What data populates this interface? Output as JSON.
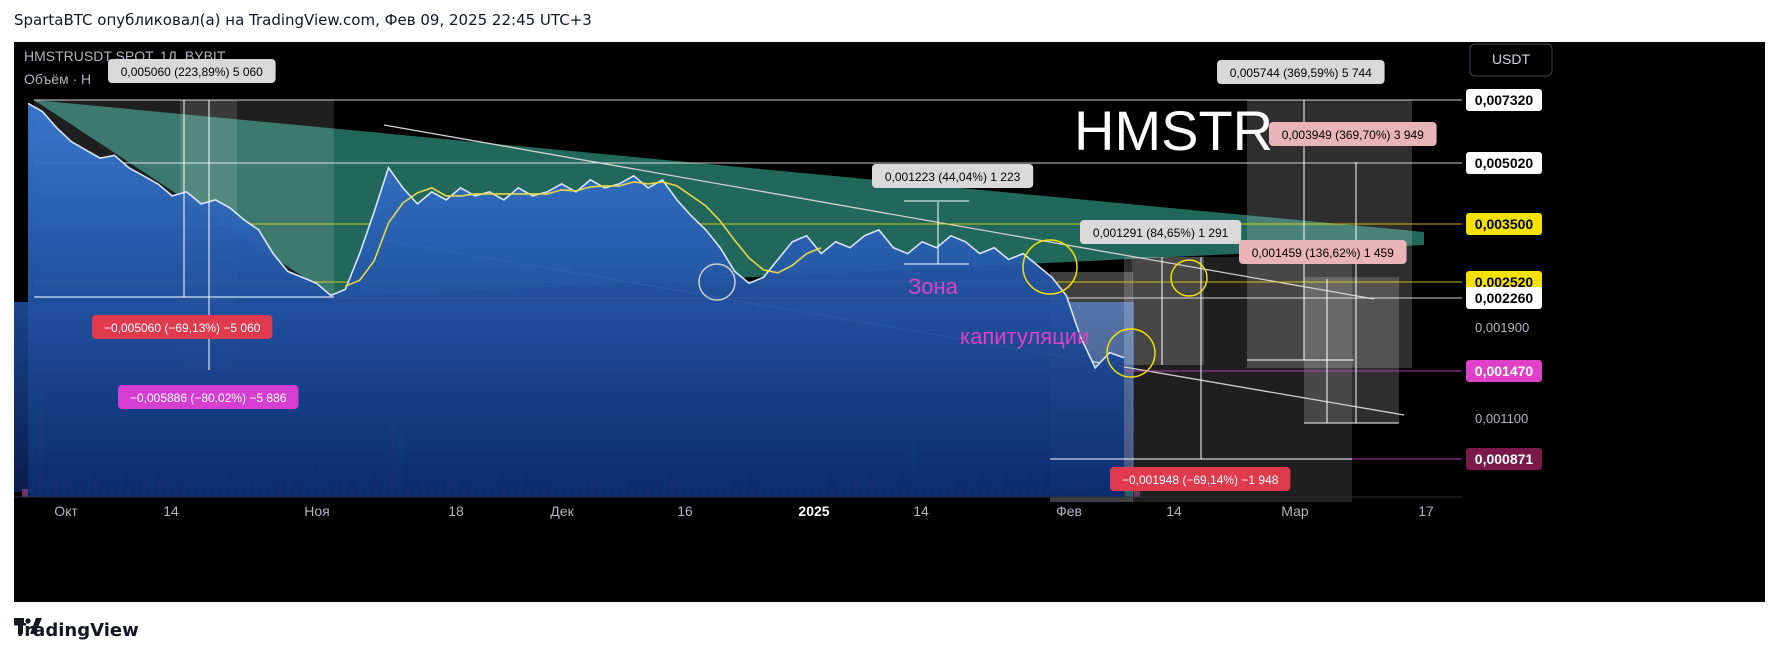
{
  "header": {
    "text": "SpartaBTC опубликовал(а) на TradingView.com, Фев 09, 2025 22:45 UTC+3"
  },
  "footer": {
    "brand": "TradingView"
  },
  "chart_data": {
    "type": "area",
    "symbol_line": "HMSTRUSDT SPOT, 1Д, BYBIT",
    "volume_line": "Объём · Н",
    "currency_button": "USDT",
    "watermark": "HMSTR",
    "x_ticks": [
      "Окт",
      "14",
      "Ноя",
      "18",
      "Дек",
      "16",
      "2025",
      "14",
      "Фев",
      "14",
      "Мар",
      "17"
    ],
    "price_scale_ticks": [
      "0,001900",
      "0,001100"
    ],
    "price_levels": [
      {
        "label": "0,007320",
        "value": 0.00732,
        "color": "#ffffff"
      },
      {
        "label": "0,005020",
        "value": 0.00502,
        "color": "#ffffff"
      },
      {
        "label": "0,003500",
        "value": 0.0035,
        "color": "#f5e100"
      },
      {
        "label": "0,002520",
        "value": 0.00252,
        "color": "#f5e100"
      },
      {
        "label": "0,002260",
        "value": 0.00226,
        "color": "#ffffff"
      },
      {
        "label": "0,001470",
        "value": 0.00147,
        "color": "#e040c8"
      },
      {
        "label": "0,000871",
        "value": 0.000871,
        "color": "#7a1a4a"
      }
    ],
    "measurements": [
      {
        "text": "0,005060 (223,89%) 5 060",
        "kind": "up"
      },
      {
        "text": "−0,005060 (−69,13%) −5 060",
        "kind": "down"
      },
      {
        "text": "−0,005886 (−80,02%) −5 886",
        "kind": "pink"
      },
      {
        "text": "0,001223 (44,04%) 1 223",
        "kind": "up"
      },
      {
        "text": "0,001291 (84,65%) 1 291",
        "kind": "up"
      },
      {
        "text": "0,001459 (136,62%) 1 459",
        "kind": "up-pink"
      },
      {
        "text": "0,003949 (369,70%) 3 949",
        "kind": "up-pink"
      },
      {
        "text": "0,005744 (369,59%) 5 744",
        "kind": "up"
      },
      {
        "text": "−0,001948 (−69,14%) −1 948",
        "kind": "down"
      }
    ],
    "annotations": [
      "Зона",
      "капитуляции"
    ],
    "series": [
      {
        "values": [
          0.0072,
          0.0069,
          0.0063,
          0.0058,
          0.0055,
          0.0052,
          0.0053,
          0.0049,
          0.0047,
          0.0045,
          0.0042,
          0.0043,
          0.004,
          0.0041,
          0.0039,
          0.0036,
          0.0034,
          0.003,
          0.0027,
          0.0026,
          0.0025,
          0.0023,
          0.0024,
          0.003,
          0.0038,
          0.0049,
          0.0044,
          0.004,
          0.0043,
          0.0041,
          0.0044,
          0.0042,
          0.0043,
          0.0041,
          0.0044,
          0.0042,
          0.0043,
          0.0045,
          0.0043,
          0.0046,
          0.0044,
          0.0045,
          0.0047,
          0.0044,
          0.0046,
          0.0041,
          0.0037,
          0.0034,
          0.0031,
          0.0027,
          0.0025,
          0.0026,
          0.0029,
          0.0032,
          0.0033,
          0.003,
          0.0032,
          0.0031,
          0.0033,
          0.0034,
          0.0031,
          0.003,
          0.0032,
          0.0031,
          0.0033,
          0.0032,
          0.003,
          0.0031,
          0.0029,
          0.003,
          0.0028,
          0.0026,
          0.0023,
          0.0018,
          0.0015,
          0.00165,
          0.0016
        ]
      }
    ]
  }
}
